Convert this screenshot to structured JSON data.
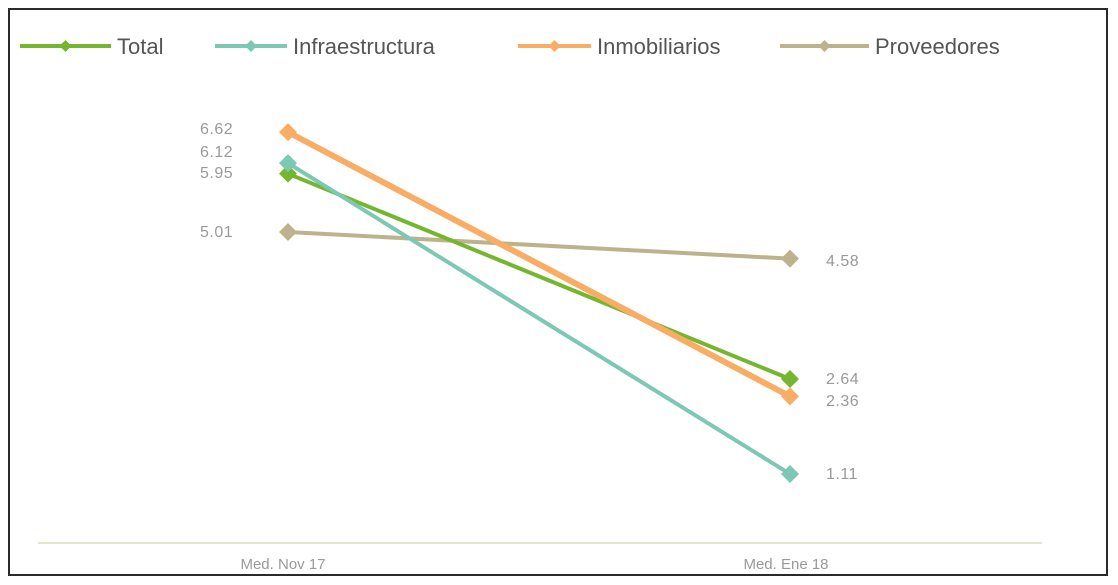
{
  "chart_data": {
    "type": "line",
    "categories": [
      "Med. Nov 17",
      "Med. Ene 18"
    ],
    "series": [
      {
        "name": "Total",
        "values": [
          5.95,
          2.64
        ],
        "color": "#74b72e",
        "labels": [
          "5.95",
          "2.64"
        ]
      },
      {
        "name": "Infraestructura",
        "values": [
          6.12,
          1.11
        ],
        "color": "#7cc8b5",
        "labels": [
          "6.12",
          "1.11"
        ]
      },
      {
        "name": "Inmobiliarios",
        "values": [
          6.62,
          2.36
        ],
        "color": "#f8ac64",
        "labels": [
          "6.62",
          "2.36"
        ]
      },
      {
        "name": "Proveedores",
        "values": [
          5.01,
          4.58
        ],
        "color": "#bcb38c",
        "labels": [
          "5.01",
          "4.58"
        ]
      }
    ],
    "axis_line_color": "#e3e6cc",
    "grid": false,
    "legend_position": "top-left"
  }
}
